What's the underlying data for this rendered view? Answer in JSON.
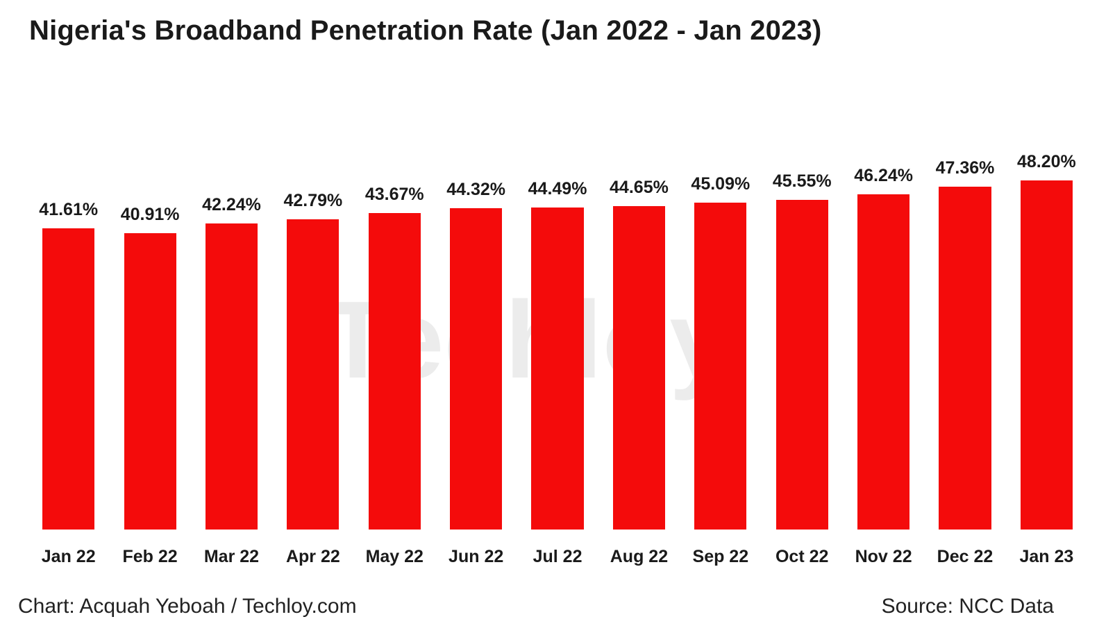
{
  "title": "Nigeria's Broadband Penetration Rate (Jan 2022 - Jan 2023)",
  "watermark": {
    "text": "Techloy",
    "dot": "."
  },
  "footer": {
    "credit": "Chart: Acquah Yeboah / Techloy.com",
    "source": "Source: NCC Data"
  },
  "colors": {
    "bar": "#f40b0b",
    "title_text": "#1a1a1a",
    "watermark": "#ececec",
    "watermark_dot": "#f6c9c9",
    "background": "#ffffff"
  },
  "chart_data": {
    "type": "bar",
    "title": "Nigeria's Broadband Penetration Rate (Jan 2022 - Jan 2023)",
    "categories": [
      "Jan 22",
      "Feb 22",
      "Mar 22",
      "Apr 22",
      "May 22",
      "Jun 22",
      "Jul 22",
      "Aug 22",
      "Sep 22",
      "Oct 22",
      "Nov 22",
      "Dec 22",
      "Jan 23"
    ],
    "values": [
      41.61,
      40.91,
      42.24,
      42.79,
      43.67,
      44.32,
      44.49,
      44.65,
      45.09,
      45.55,
      46.24,
      47.36,
      48.2
    ],
    "value_suffix": "%",
    "xlabel": "",
    "ylabel": "",
    "ylim": [
      0,
      48.2
    ],
    "grid": false,
    "legend": false,
    "bar_color": "#f40b0b",
    "data_labels": [
      "41.61%",
      "40.91%",
      "42.24%",
      "42.79%",
      "43.67%",
      "44.32%",
      "44.49%",
      "44.65%",
      "45.09%",
      "45.55%",
      "46.24%",
      "47.36%",
      "48.20%"
    ]
  }
}
